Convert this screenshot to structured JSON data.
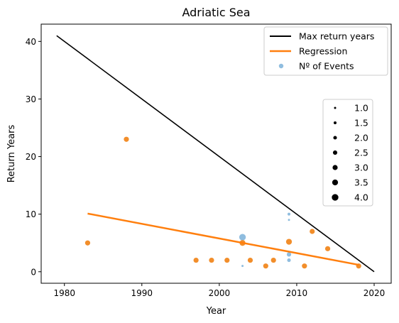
{
  "chart_data": {
    "type": "scatter",
    "title": "Adriatic Sea",
    "xlabel": "Year",
    "ylabel": "Return Years",
    "xlim": [
      1977,
      2022.2
    ],
    "ylim": [
      -2,
      43
    ],
    "xticks": [
      1980,
      1990,
      2000,
      2010,
      2020
    ],
    "yticks": [
      0,
      10,
      20,
      30,
      40
    ],
    "grid": false,
    "max_return_line": {
      "name": "Max return years",
      "color": "#000000",
      "x": [
        1979,
        2020
      ],
      "y": [
        41,
        0
      ]
    },
    "regression_line": {
      "name": "Regression",
      "color": "#ff7f0e",
      "x": [
        1983,
        2018
      ],
      "y": [
        10.1,
        1.2
      ]
    },
    "events": {
      "name": "Nº of Events",
      "color": "#8fbddf",
      "points": [
        {
          "x": 2003,
          "y": 1,
          "n": 1.0
        },
        {
          "x": 2003,
          "y": 6,
          "n": 4.0
        },
        {
          "x": 2009,
          "y": 10,
          "n": 1.5
        },
        {
          "x": 2009,
          "y": 9,
          "n": 1.0
        },
        {
          "x": 2009,
          "y": 3,
          "n": 2.5
        },
        {
          "x": 2009,
          "y": 2,
          "n": 2.0
        }
      ]
    },
    "observations": {
      "color": "#f28e2b",
      "points": [
        {
          "x": 1983,
          "y": 5,
          "n": 3.0
        },
        {
          "x": 1988,
          "y": 23,
          "n": 3.0
        },
        {
          "x": 1997,
          "y": 2,
          "n": 3.0
        },
        {
          "x": 1999,
          "y": 2,
          "n": 3.0
        },
        {
          "x": 2001,
          "y": 2,
          "n": 3.0
        },
        {
          "x": 2003,
          "y": 5,
          "n": 3.5
        },
        {
          "x": 2004,
          "y": 2,
          "n": 3.0
        },
        {
          "x": 2006,
          "y": 1,
          "n": 3.0
        },
        {
          "x": 2007,
          "y": 2,
          "n": 3.0
        },
        {
          "x": 2009,
          "y": 5.2,
          "n": 3.5
        },
        {
          "x": 2011,
          "y": 1,
          "n": 3.0
        },
        {
          "x": 2012,
          "y": 7,
          "n": 3.0
        },
        {
          "x": 2014,
          "y": 4,
          "n": 3.0
        },
        {
          "x": 2018,
          "y": 1,
          "n": 3.0
        }
      ]
    },
    "legend": {
      "placement": "top-right",
      "entries": [
        "Max return years",
        "Regression",
        "Nº of Events"
      ]
    },
    "size_legend": {
      "placement": "right",
      "values": [
        1.0,
        1.5,
        2.0,
        2.5,
        3.0,
        3.5,
        4.0
      ],
      "labels": [
        "1.0",
        "1.5",
        "2.0",
        "2.5",
        "3.0",
        "3.5",
        "4.0"
      ]
    }
  }
}
